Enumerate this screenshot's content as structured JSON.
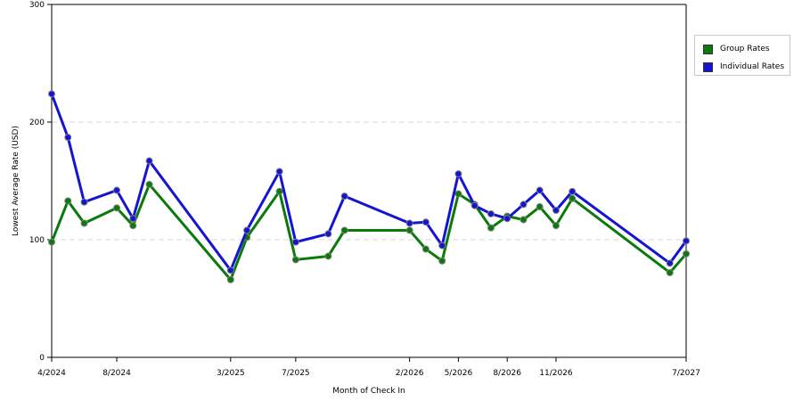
{
  "chart_data": {
    "type": "line",
    "title": "",
    "xlabel": "Month of Check In",
    "ylabel": "Lowest Average Rate (USD)",
    "ylim": [
      0,
      300
    ],
    "yticks": [
      0,
      100,
      200,
      300
    ],
    "grid": true,
    "legend_position": "top-right",
    "x": [
      "4/2024",
      "5/2024",
      "6/2024",
      "7/2024",
      "8/2024",
      "9/2024",
      "10/2024",
      "11/2024",
      "12/2024",
      "1/2025",
      "2/2025",
      "3/2025",
      "4/2025",
      "5/2025",
      "6/2025",
      "7/2025",
      "8/2025",
      "9/2025",
      "10/2025",
      "11/2025",
      "12/2025",
      "1/2026",
      "2/2026",
      "3/2026",
      "4/2026",
      "5/2026",
      "6/2026",
      "7/2026",
      "8/2026",
      "9/2026",
      "10/2026",
      "11/2026",
      "12/2026",
      "1/2027",
      "2/2027",
      "3/2027",
      "4/2027",
      "5/2027",
      "6/2027",
      "7/2027"
    ],
    "x_tick_labels": [
      "4/2024",
      "8/2024",
      "3/2025",
      "7/2025",
      "2/2026",
      "5/2026",
      "8/2026",
      "11/2026",
      "7/2027"
    ],
    "x_tick_dates": [
      "4/2024",
      "8/2024",
      "3/2025",
      "7/2025",
      "2/2026",
      "5/2026",
      "8/2026",
      "11/2026",
      "7/2027"
    ],
    "series": [
      {
        "name": "Group Rates",
        "color": "#0a7a0a",
        "points": [
          [
            "4/2024",
            98
          ],
          [
            "5/2024",
            133
          ],
          [
            "6/2024",
            114
          ],
          [
            "8/2024",
            127
          ],
          [
            "9/2024",
            112
          ],
          [
            "10/2024",
            147
          ],
          [
            "3/2025",
            66
          ],
          [
            "4/2025",
            102
          ],
          [
            "6/2025",
            141
          ],
          [
            "7/2025",
            83
          ],
          [
            "9/2025",
            86
          ],
          [
            "10/2025",
            108
          ],
          [
            "2/2026",
            108
          ],
          [
            "3/2026",
            92
          ],
          [
            "4/2026",
            82
          ],
          [
            "5/2026",
            139
          ],
          [
            "6/2026",
            130
          ],
          [
            "7/2026",
            110
          ],
          [
            "8/2026",
            120
          ],
          [
            "9/2026",
            117
          ],
          [
            "10/2026",
            128
          ],
          [
            "11/2026",
            112
          ],
          [
            "12/2026",
            135
          ],
          [
            "6/2027",
            72
          ],
          [
            "7/2027",
            88
          ]
        ]
      },
      {
        "name": "Individual Rates",
        "color": "#1414d2",
        "points": [
          [
            "4/2024",
            224
          ],
          [
            "5/2024",
            187
          ],
          [
            "6/2024",
            132
          ],
          [
            "8/2024",
            142
          ],
          [
            "9/2024",
            118
          ],
          [
            "10/2024",
            167
          ],
          [
            "3/2025",
            74
          ],
          [
            "4/2025",
            108
          ],
          [
            "6/2025",
            158
          ],
          [
            "7/2025",
            98
          ],
          [
            "9/2025",
            105
          ],
          [
            "10/2025",
            137
          ],
          [
            "2/2026",
            114
          ],
          [
            "3/2026",
            115
          ],
          [
            "4/2026",
            95
          ],
          [
            "5/2026",
            156
          ],
          [
            "6/2026",
            129
          ],
          [
            "7/2026",
            122
          ],
          [
            "8/2026",
            118
          ],
          [
            "9/2026",
            130
          ],
          [
            "10/2026",
            142
          ],
          [
            "11/2026",
            125
          ],
          [
            "12/2026",
            141
          ],
          [
            "6/2027",
            80
          ],
          [
            "7/2027",
            99
          ]
        ]
      }
    ]
  }
}
